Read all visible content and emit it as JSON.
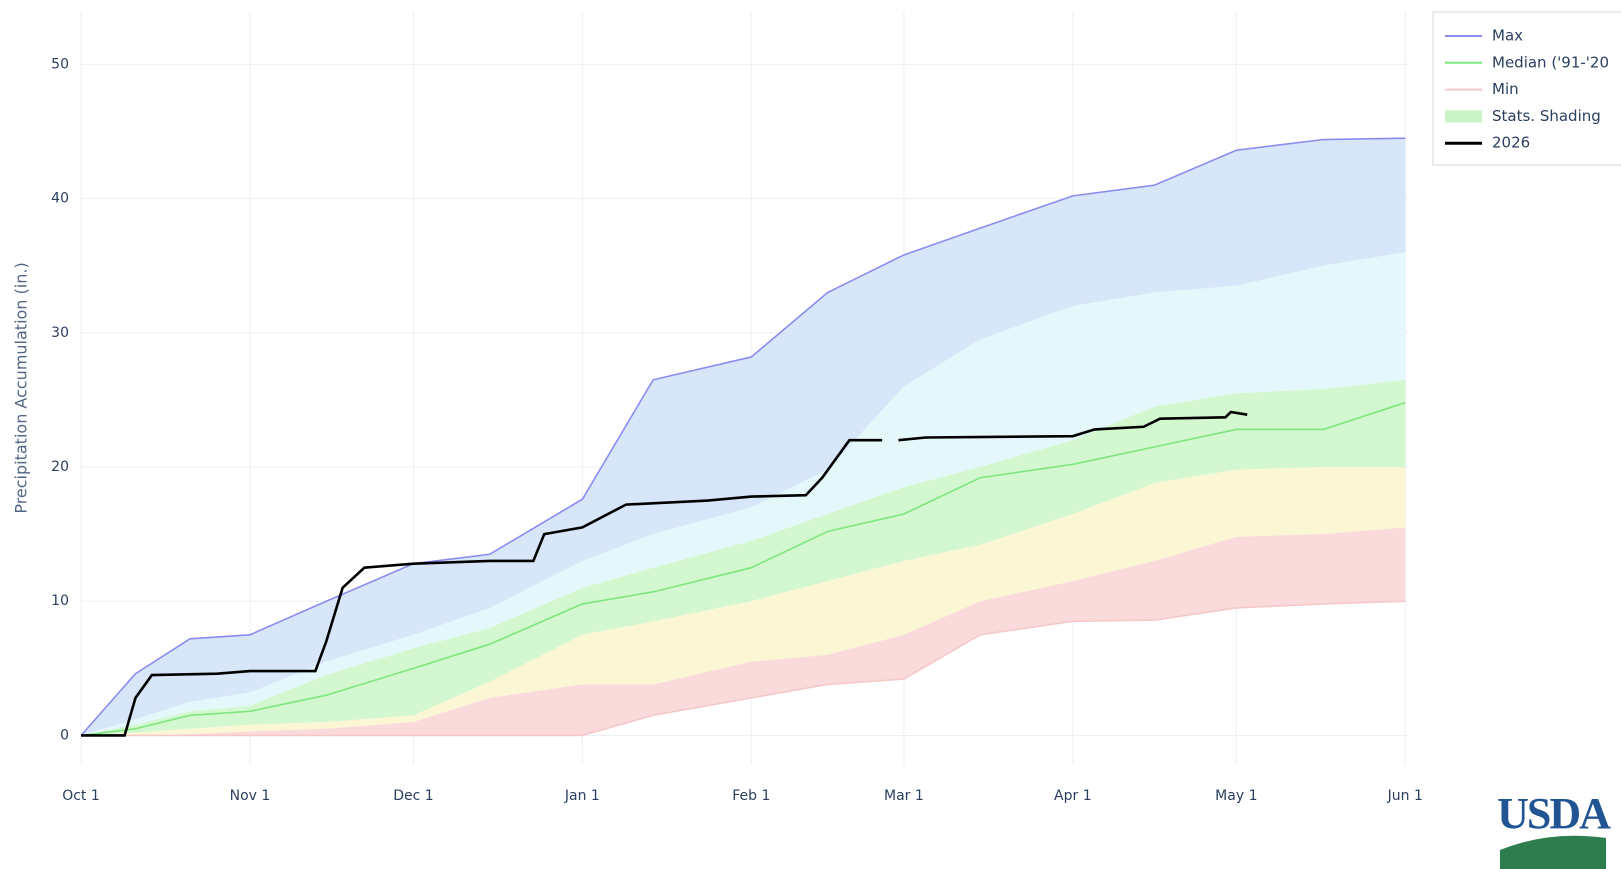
{
  "chart_data": {
    "type": "line",
    "y_label": "Precipitation Accumulation (in.)",
    "x": [
      0,
      10,
      20,
      31,
      45,
      61,
      75,
      92,
      105,
      123,
      137,
      151,
      165,
      182,
      197,
      212,
      228,
      243
    ],
    "xlim": [
      0,
      243.5
    ],
    "xticks": [
      {
        "value": 0,
        "label": "Oct 1"
      },
      {
        "value": 31,
        "label": "Nov 1"
      },
      {
        "value": 61,
        "label": "Dec 1"
      },
      {
        "value": 92,
        "label": "Jan 1"
      },
      {
        "value": 123,
        "label": "Feb 1"
      },
      {
        "value": 151,
        "label": "Mar 1"
      },
      {
        "value": 182,
        "label": "Apr 1"
      },
      {
        "value": 212,
        "label": "May 1"
      },
      {
        "value": 243,
        "label": "Jun 1"
      }
    ],
    "ylim": [
      -2.2,
      53.9
    ],
    "yticks": [
      0,
      10,
      20,
      30,
      40,
      50
    ],
    "grid": true,
    "series": [
      {
        "name": "Max",
        "color": "#8c8cf0",
        "values": [
          0,
          4.6,
          7.2,
          7.5,
          10,
          12.8,
          13.5,
          17.6,
          26.5,
          28.2,
          33,
          35.8,
          37.8,
          40.2,
          41,
          43.6,
          44.4,
          44.5
        ]
      },
      {
        "name": "Median ('91-'20",
        "color": "#7ee67e",
        "values": [
          0,
          0.5,
          1.5,
          1.8,
          3,
          5,
          6.8,
          9.8,
          10.7,
          12.5,
          15.2,
          16.5,
          19.2,
          20.2,
          21.5,
          22.8,
          22.8,
          24.8
        ]
      },
      {
        "name": "Min",
        "color": "#f6c9c9",
        "values": [
          0,
          0,
          0,
          0,
          0,
          0,
          0,
          0,
          1.5,
          2.8,
          3.8,
          4.2,
          7.5,
          8.5,
          8.6,
          9.5,
          9.8,
          10
        ]
      },
      {
        "name": "2026",
        "color": "#000000",
        "x": [
          0,
          8,
          10,
          13,
          25,
          31,
          43,
          45,
          48,
          52,
          61,
          75,
          83,
          85,
          92,
          100,
          115,
          123,
          133,
          136,
          141,
          147,
          149,
          150,
          155,
          182,
          186,
          195,
          198,
          210,
          211,
          214
        ],
        "values": [
          0,
          0,
          2.8,
          4.5,
          4.6,
          4.8,
          4.8,
          7,
          11,
          12.5,
          12.8,
          13,
          13,
          15,
          15.5,
          17.2,
          17.5,
          17.8,
          17.9,
          19.2,
          22,
          22,
          null,
          22,
          22.2,
          22.3,
          22.8,
          23,
          23.6,
          23.7,
          24.1,
          23.9
        ]
      }
    ],
    "shading": {
      "name": "Stats. Shading",
      "color": "#c9f3c5",
      "band_colors": [
        "#d7e6f9",
        "#e4f7fb",
        "#d3f7cf",
        "#fbf7d4",
        "#fadadb"
      ],
      "levels": [
        [
          0,
          1.2,
          2.5,
          3.2,
          5.5,
          7.5,
          9.5,
          13,
          15,
          17,
          19.8,
          26,
          29.5,
          32,
          33,
          33.5,
          35,
          36
        ],
        [
          0,
          0.8,
          1.8,
          2.2,
          4.5,
          6.5,
          8,
          11,
          12.5,
          14.5,
          16.5,
          18.5,
          20,
          22,
          24.5,
          25.5,
          25.8,
          26.5
        ],
        [
          0,
          0.2,
          0.5,
          0.8,
          1,
          1.5,
          4,
          7.5,
          8.5,
          10,
          11.5,
          13,
          14.2,
          16.5,
          18.8,
          19.8,
          20,
          20
        ],
        [
          0,
          0,
          0.1,
          0.3,
          0.5,
          1,
          2.8,
          3.8,
          3.8,
          5.5,
          6,
          7.5,
          10,
          11.5,
          13,
          14.8,
          15,
          15.5
        ]
      ]
    }
  },
  "logo": "USDA"
}
